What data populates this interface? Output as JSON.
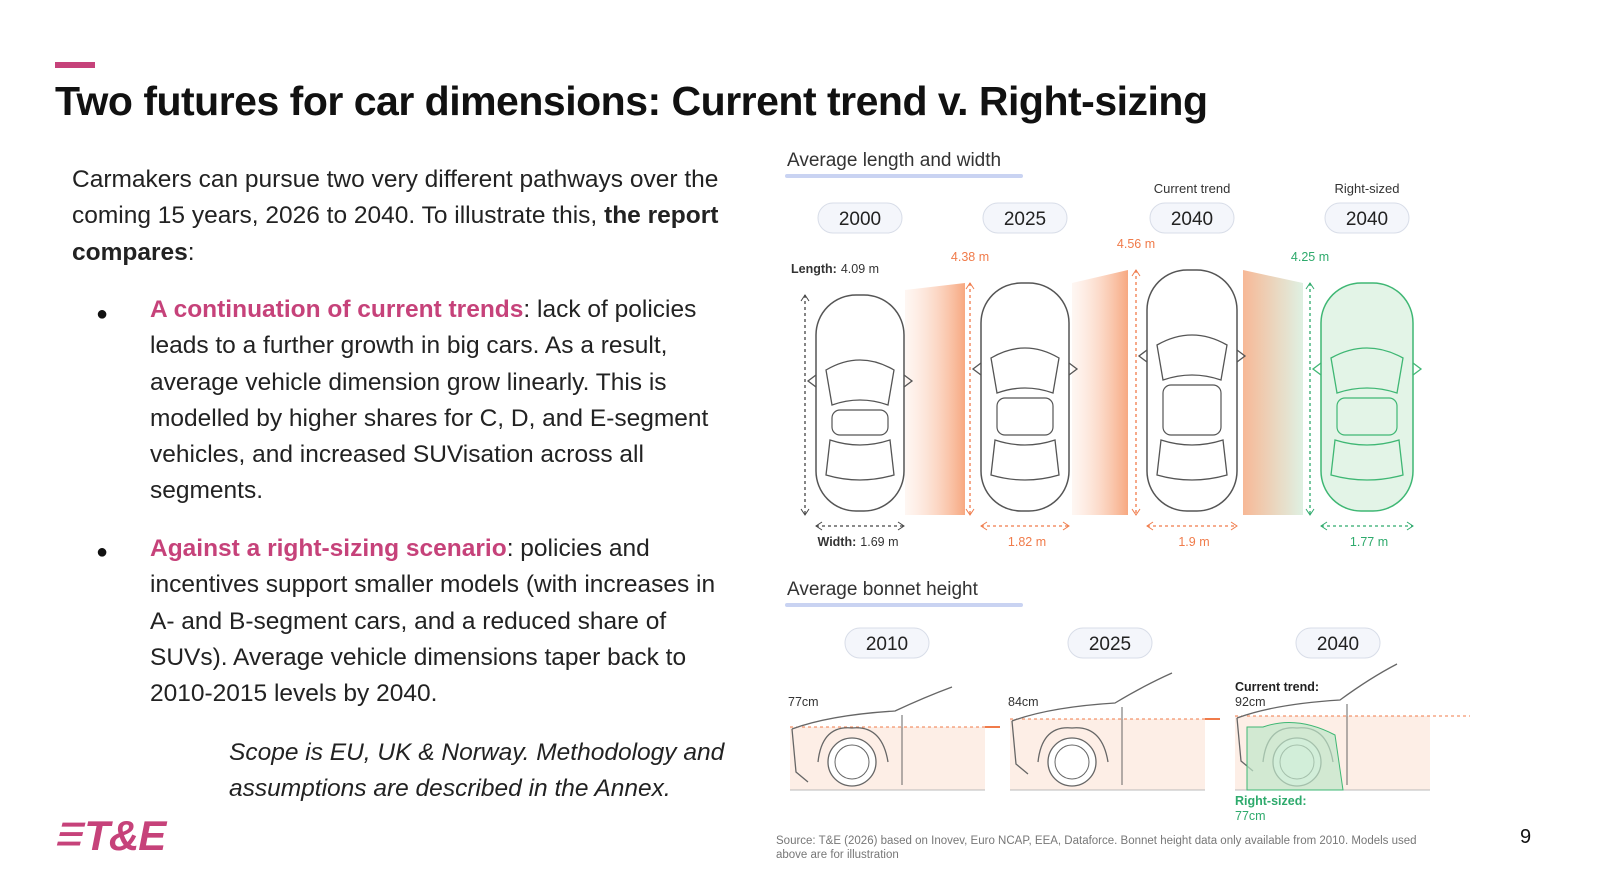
{
  "title": "Two futures for car dimensions: Current trend v. Right-sizing",
  "intro": {
    "text": "Carmakers can pursue two very different pathways over the coming 15 years, 2026 to 2040. To illustrate this, ",
    "bold": "the report compares",
    "end": ":"
  },
  "bullets": [
    {
      "lead": "A continuation of current trends",
      "text": ": lack of policies leads to a further growth in big cars. As a result, average vehicle dimension grow linearly. This is modelled by higher shares for C, D, and E-segment vehicles, and increased SUVisation across all segments."
    },
    {
      "lead": "Against a right-sizing scenario",
      "text": ": policies and incentives support smaller models (with increases in A- and B-segment cars, and a reduced share of SUVs). Average vehicle dimensions taper back to 2010-2015 levels by 2040."
    }
  ],
  "scope": "Scope is EU, UK & Norway. Methodology and assumptions are described in the Annex.",
  "logo": "T&E",
  "page_number": "9",
  "figure": {
    "dimensions": {
      "heading": "Average length and width",
      "length_label": "Length:",
      "width_label": "Width:",
      "columns": [
        {
          "year": "2000",
          "length": "4.09 m",
          "width": "1.69 m"
        },
        {
          "year": "2025",
          "length": "4.38 m",
          "width": "1.82 m"
        },
        {
          "scenario": "Current trend",
          "year": "2040",
          "length": "4.56 m",
          "width": "1.9 m"
        },
        {
          "scenario": "Right-sized",
          "year": "2040",
          "length": "4.25 m",
          "width": "1.77 m"
        }
      ]
    },
    "bonnet": {
      "heading": "Average bonnet height",
      "columns": [
        {
          "year": "2010",
          "height": "77cm"
        },
        {
          "year": "2025",
          "height": "84cm"
        },
        {
          "year": "2040",
          "current_label": "Current trend:",
          "current": "92cm",
          "right_label": "Right-sized:",
          "right": "77cm"
        }
      ]
    },
    "source": "Source: T&E (2026) based on Inovev, Euro NCAP, EEA, Dataforce. Bonnet height data only available from 2010. Models used above are for illustration"
  }
}
